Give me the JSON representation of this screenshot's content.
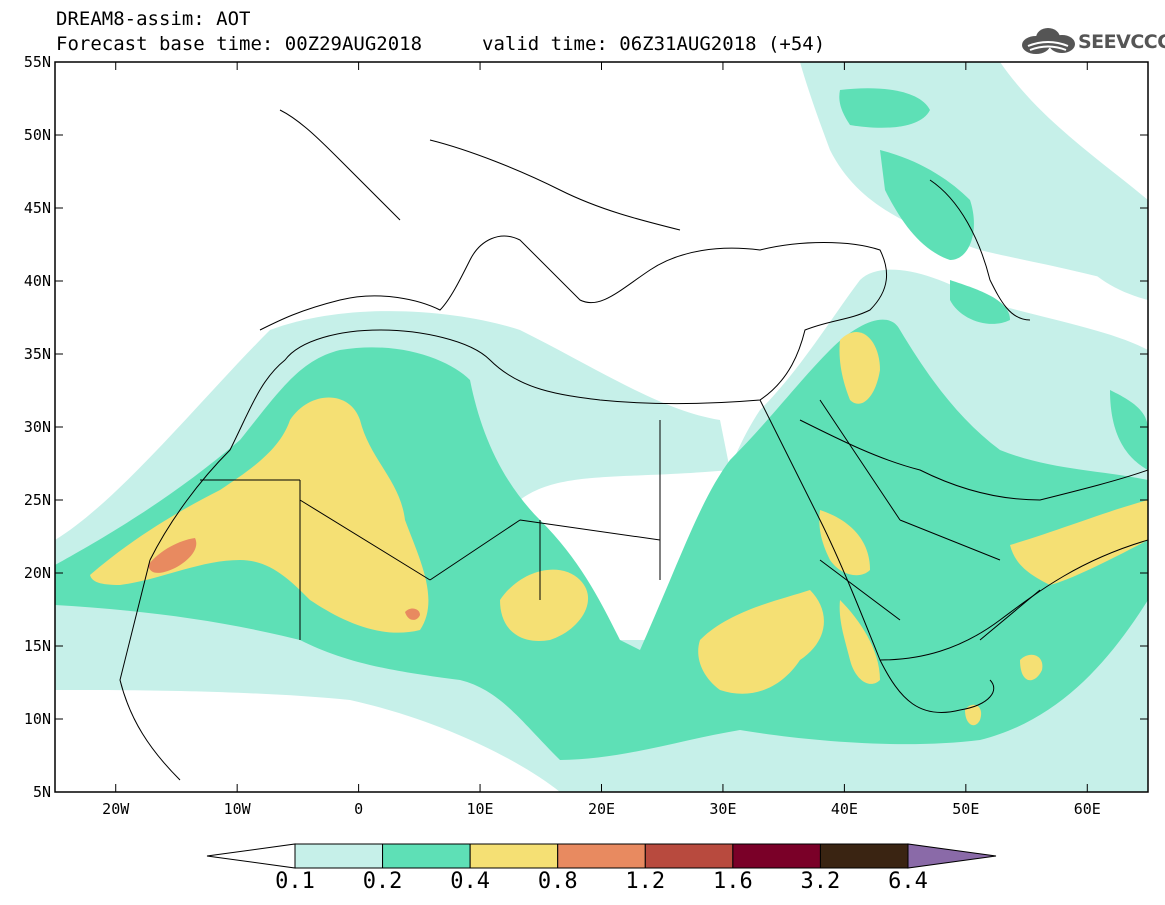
{
  "header": {
    "line1": "DREAM8-assim: AOT",
    "line2": "Forecast base time: 00Z29AUG2018",
    "valid": "valid time: 06Z31AUG2018 (+54)"
  },
  "logo": {
    "text": "SEEVCCC",
    "icon": "cloud-icon"
  },
  "map": {
    "lon_range": [
      -25,
      65
    ],
    "lat_range": [
      5,
      55
    ],
    "lat_ticks": [
      "55N",
      "50N",
      "45N",
      "40N",
      "35N",
      "30N",
      "25N",
      "20N",
      "15N",
      "10N",
      "5N"
    ],
    "lon_ticks": [
      "20W",
      "10W",
      "0",
      "10E",
      "20E",
      "30E",
      "40E",
      "50E",
      "60E"
    ],
    "field": "aerosol optical thickness"
  },
  "colorbar": {
    "levels": [
      "0.1",
      "0.2",
      "0.4",
      "0.8",
      "1.2",
      "1.6",
      "3.2",
      "6.4"
    ],
    "colors": [
      "#ffffff",
      "#c6f0e9",
      "#5ee0b6",
      "#f5e074",
      "#e88a60",
      "#b84a3e",
      "#7a0028",
      "#3a2412",
      "#8a6aa8"
    ]
  }
}
